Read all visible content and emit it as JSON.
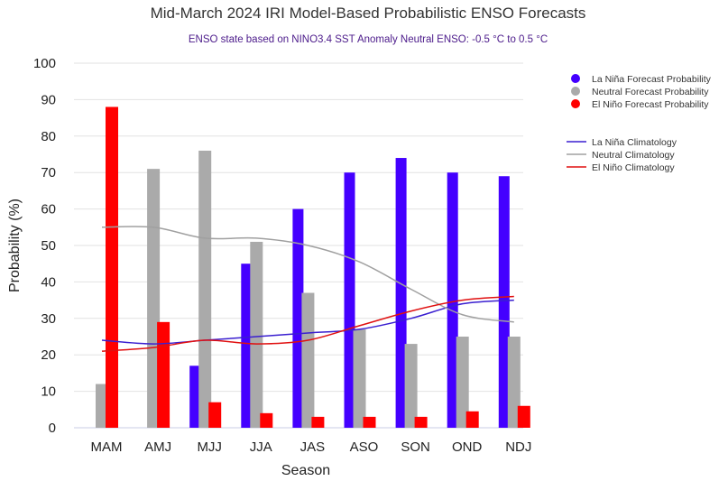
{
  "chart_data": {
    "type": "bar",
    "title": "Mid-March 2024 IRI Model-Based Probabilistic ENSO Forecasts",
    "subtitle": "ENSO state based on NINO3.4 SST Anomaly Neutral ENSO: -0.5 °C to 0.5 °C",
    "xlabel": "Season",
    "ylabel": "Probability (%)",
    "ylim": [
      0,
      100
    ],
    "yticks": [
      0,
      10,
      20,
      30,
      40,
      50,
      60,
      70,
      80,
      90,
      100
    ],
    "grid": true,
    "legend_position": "right",
    "categories": [
      "MAM",
      "AMJ",
      "MJJ",
      "JJA",
      "JAS",
      "ASO",
      "SON",
      "OND",
      "NDJ"
    ],
    "series": [
      {
        "name": "La Niña Forecast Probability",
        "kind": "bar",
        "color": "#4400ff",
        "values": [
          0,
          0,
          17,
          45,
          60,
          70,
          74,
          70,
          69
        ]
      },
      {
        "name": "Neutral Forecast Probability",
        "kind": "bar",
        "color": "#aaaaaa",
        "values": [
          12,
          71,
          76,
          51,
          37,
          27,
          23,
          25,
          25
        ]
      },
      {
        "name": "El Niño Forecast Probability",
        "kind": "bar",
        "color": "#ff0000",
        "values": [
          88,
          29,
          7,
          4,
          3,
          3,
          3,
          4.5,
          6
        ]
      },
      {
        "name": "La Niña Climatology",
        "kind": "line",
        "color": "#3a1fd0",
        "values": [
          24,
          23,
          24,
          25,
          26,
          27,
          30,
          34,
          35
        ]
      },
      {
        "name": "Neutral Climatology",
        "kind": "line",
        "color": "#a0a0a0",
        "values": [
          55,
          55,
          52,
          52,
          50,
          45.5,
          38,
          31,
          29
        ]
      },
      {
        "name": "El Niño Climatology",
        "kind": "line",
        "color": "#e01010",
        "values": [
          21,
          22,
          24,
          23,
          24,
          28,
          32,
          35,
          36
        ]
      }
    ]
  }
}
